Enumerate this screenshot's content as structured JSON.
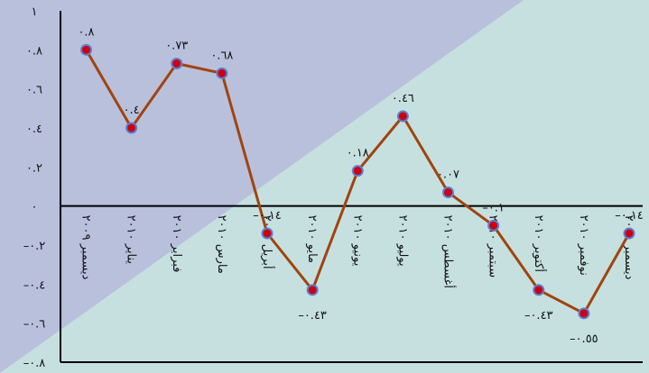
{
  "chart_data": {
    "type": "line",
    "categories": [
      "ديسمبر ٢٠٠٩",
      "يناير ٢٠١٠",
      "فبراير ٢٠١٠",
      "مارس ٢٠١٠",
      "أبريل ٢٠١٠",
      "مايو ٢٠١٠",
      "يونيو ٢٠١٠",
      "يوليو ٢٠١٠",
      "أغسطس ٢٠١٠",
      "سبتمبر ٢٠١٠",
      "أكتوبر ٢٠١٠",
      "نوفمبر ٢٠١٠",
      "ديسمبر ٢٠١٠"
    ],
    "values": [
      0.8,
      0.4,
      0.73,
      0.68,
      -0.14,
      -0.43,
      0.18,
      0.46,
      0.07,
      -0.1,
      -0.43,
      -0.55,
      -0.14
    ],
    "data_labels": [
      "٠.٨",
      "٠.٤",
      "٠.٧٣",
      "٠.٦٨",
      "–٠.١٤",
      "–٠.٤٣",
      "٠.١٨",
      "٠.٤٦",
      "٠.٠٧",
      "–٠.١",
      "–٠.٤٣",
      "–٠.٥٥",
      "–٠.١٤"
    ],
    "y_ticks": [
      1,
      0.8,
      0.6,
      0.4,
      0.2,
      0,
      -0.2,
      -0.4,
      -0.6,
      -0.8
    ],
    "y_tick_labels": [
      "١",
      "٠.٨",
      "٠.٦",
      "٠.٤",
      "٠.٢",
      "٠",
      "–٠.٢",
      "–٠.٤",
      "–٠.٦",
      "–٠.٨"
    ],
    "ylim": [
      -0.8,
      1
    ],
    "title": "",
    "xlabel": "",
    "ylabel": "",
    "grid": false,
    "legend": "none",
    "colors": {
      "line": "#a0440e",
      "marker_fill": "#cc0011",
      "marker_stroke": "#5b7fd0",
      "background_upper": "#b9c0dc",
      "background_lower": "#c6e0df",
      "axis": "#000000"
    }
  }
}
